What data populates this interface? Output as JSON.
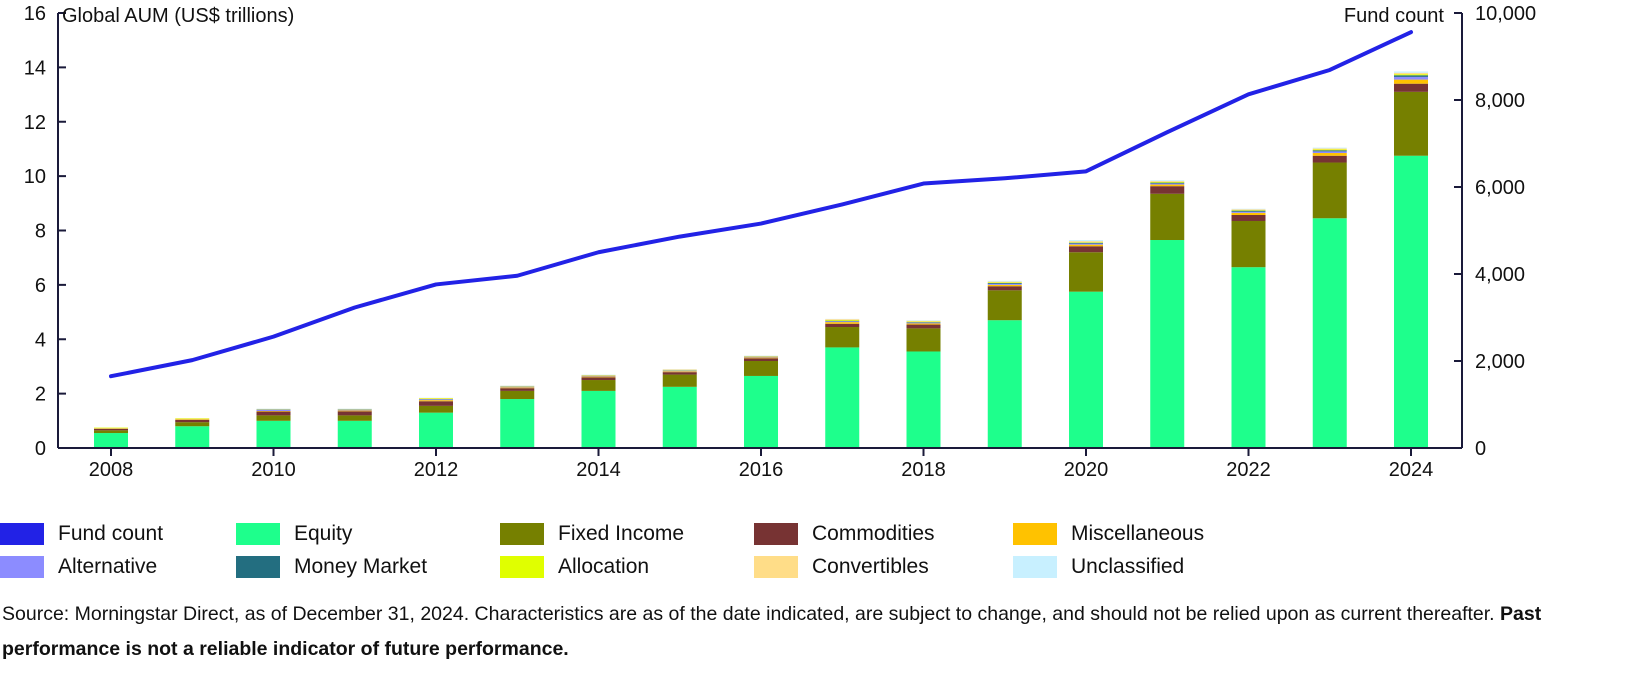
{
  "chart_data": {
    "type": "bar",
    "stacked": true,
    "ylabel_left": "Global AUM (US$ trillions)",
    "ylabel_right": "Fund count",
    "ylim_left": [
      0,
      16
    ],
    "yticks_left": [
      0,
      2,
      4,
      6,
      8,
      10,
      12,
      14,
      16
    ],
    "ylim_right": [
      0,
      10000
    ],
    "yticks_right": [
      "0",
      "2,000",
      "4,000",
      "6,000",
      "8,000",
      "10,000"
    ],
    "yticks_right_values": [
      0,
      2000,
      4000,
      6000,
      8000,
      10000
    ],
    "categories": [
      "2008",
      "2009",
      "2010",
      "2011",
      "2012",
      "2013",
      "2014",
      "2015",
      "2016",
      "2017",
      "2018",
      "2019",
      "2020",
      "2021",
      "2022",
      "2023",
      "2024"
    ],
    "xtick_labels": [
      "2008",
      "2010",
      "2012",
      "2014",
      "2016",
      "2018",
      "2020",
      "2022",
      "2024"
    ],
    "grid": false,
    "legend_position": "bottom",
    "series": [
      {
        "name": "Equity",
        "color": "#1eff8c",
        "values": [
          0.55,
          0.8,
          1.0,
          1.0,
          1.3,
          1.8,
          2.1,
          2.25,
          2.65,
          3.7,
          3.55,
          4.7,
          5.75,
          7.65,
          6.65,
          8.45,
          10.75
        ]
      },
      {
        "name": "Fixed Income",
        "color": "#768000",
        "values": [
          0.1,
          0.15,
          0.2,
          0.2,
          0.25,
          0.3,
          0.4,
          0.45,
          0.55,
          0.75,
          0.85,
          1.1,
          1.45,
          1.7,
          1.7,
          2.05,
          2.35
        ]
      },
      {
        "name": "Commodities",
        "color": "#773333",
        "values": [
          0.05,
          0.08,
          0.14,
          0.15,
          0.17,
          0.1,
          0.1,
          0.09,
          0.1,
          0.12,
          0.14,
          0.15,
          0.22,
          0.28,
          0.22,
          0.25,
          0.3
        ]
      },
      {
        "name": "Miscellaneous",
        "color": "#ffc200",
        "values": [
          0.02,
          0.03,
          0.02,
          0.03,
          0.04,
          0.03,
          0.03,
          0.03,
          0.03,
          0.06,
          0.04,
          0.05,
          0.06,
          0.06,
          0.08,
          0.1,
          0.15
        ]
      },
      {
        "name": "Alternative",
        "color": "#8c8cff",
        "values": [
          0.01,
          0.01,
          0.05,
          0.03,
          0.03,
          0.02,
          0.02,
          0.02,
          0.02,
          0.03,
          0.03,
          0.04,
          0.04,
          0.04,
          0.04,
          0.06,
          0.1
        ]
      },
      {
        "name": "Money Market",
        "color": "#236e80",
        "values": [
          0.0,
          0.0,
          0.01,
          0.01,
          0.01,
          0.01,
          0.01,
          0.01,
          0.01,
          0.02,
          0.02,
          0.03,
          0.03,
          0.03,
          0.04,
          0.04,
          0.06
        ]
      },
      {
        "name": "Allocation",
        "color": "#e0ff00",
        "values": [
          0.02,
          0.02,
          0.01,
          0.01,
          0.02,
          0.01,
          0.01,
          0.01,
          0.01,
          0.03,
          0.02,
          0.02,
          0.02,
          0.03,
          0.02,
          0.03,
          0.04
        ]
      },
      {
        "name": "Convertibles",
        "color": "#ffdd88",
        "values": [
          0.0,
          0.01,
          0.01,
          0.01,
          0.02,
          0.02,
          0.02,
          0.03,
          0.02,
          0.03,
          0.03,
          0.03,
          0.04,
          0.03,
          0.03,
          0.04,
          0.05
        ]
      },
      {
        "name": "Unclassified",
        "color": "#c8f0ff",
        "values": [
          0.0,
          0.0,
          0.01,
          0.01,
          0.01,
          0.01,
          0.01,
          0.01,
          0.01,
          0.01,
          0.02,
          0.03,
          0.04,
          0.03,
          0.02,
          0.03,
          0.05
        ]
      }
    ],
    "line_series": {
      "name": "Fund count",
      "color": "#2222e6",
      "axis": "right",
      "values": [
        1650,
        2020,
        2560,
        3230,
        3760,
        3960,
        4500,
        4860,
        5160,
        5600,
        6080,
        6200,
        6360,
        7260,
        8130,
        8690,
        9560
      ]
    }
  },
  "legend": [
    {
      "label": "Fund count",
      "color": "#2222e6"
    },
    {
      "label": "Equity",
      "color": "#1eff8c"
    },
    {
      "label": "Fixed Income",
      "color": "#768000"
    },
    {
      "label": "Commodities",
      "color": "#773333"
    },
    {
      "label": "Miscellaneous",
      "color": "#ffc200"
    },
    {
      "label": "Alternative",
      "color": "#8c8cff"
    },
    {
      "label": "Money Market",
      "color": "#236e80"
    },
    {
      "label": "Allocation",
      "color": "#e0ff00"
    },
    {
      "label": "Convertibles",
      "color": "#ffdd88"
    },
    {
      "label": "Unclassified",
      "color": "#c8f0ff"
    }
  ],
  "footer": {
    "source": "Source: Morningstar Direct, as of December 31, 2024. Characteristics are as of the date indicated, are subject to change, and should not be relied upon as current thereafter.",
    "disclaimer": "Past performance is not a reliable indicator of future performance."
  }
}
